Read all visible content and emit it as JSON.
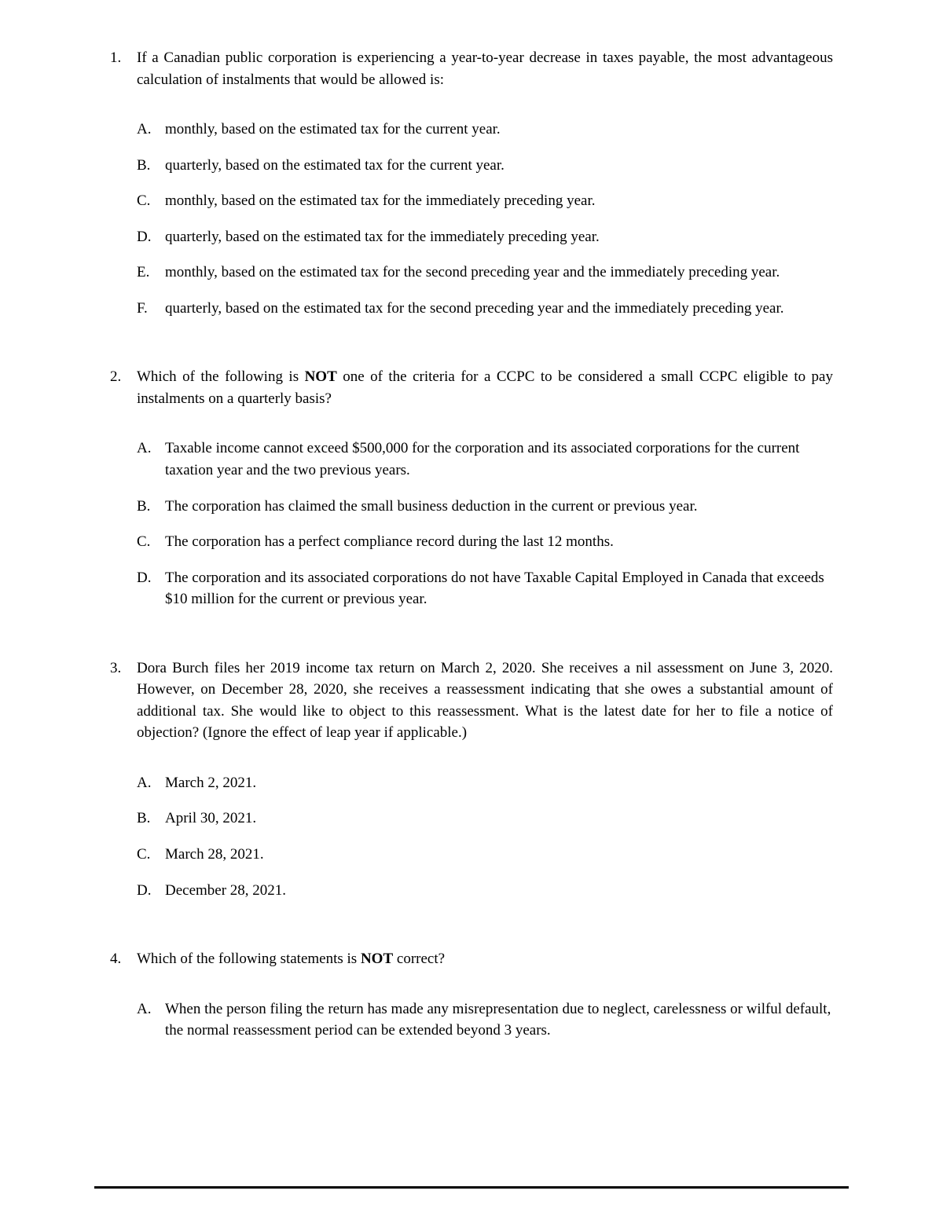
{
  "questions": [
    {
      "num": "1.",
      "text_parts": [
        {
          "t": "If a Canadian public corporation is experiencing a year-to-year decrease in taxes payable, the most advantageous calculation of instalments that would be allowed is:",
          "bold": false
        }
      ],
      "justify": true,
      "options": [
        {
          "label": "A.",
          "text": "monthly, based on the estimated tax for the current year.",
          "justify": false
        },
        {
          "label": "B.",
          "text": "quarterly, based on the estimated tax for the current year.",
          "justify": false
        },
        {
          "label": "C.",
          "text": "monthly, based on the estimated tax for the immediately preceding year.",
          "justify": false
        },
        {
          "label": "D.",
          "text": "quarterly, based on the estimated tax for the immediately preceding year.",
          "justify": false
        },
        {
          "label": "E.",
          "text": "monthly, based on the estimated tax for the second preceding year and the immediately preceding year.",
          "justify": false
        },
        {
          "label": "F.",
          "text": "quarterly, based on the estimated tax for the second preceding year and the immediately preceding year.",
          "justify": true
        }
      ]
    },
    {
      "num": "2.",
      "text_parts": [
        {
          "t": "Which of the following is ",
          "bold": false
        },
        {
          "t": "NOT",
          "bold": true
        },
        {
          "t": " one of the criteria for a CCPC to be considered a small CCPC eligible to pay instalments on a quarterly basis?",
          "bold": false
        }
      ],
      "justify": true,
      "options": [
        {
          "label": "A.",
          "text": "Taxable income cannot exceed $500,000 for the corporation and its associated corporations for the current taxation year and the two previous years.",
          "justify": false
        },
        {
          "label": "B.",
          "text": "The corporation has claimed the small business deduction in the current or previous year.",
          "justify": false
        },
        {
          "label": "C.",
          "text": "The corporation has a perfect compliance record during the last 12 months.",
          "justify": false
        },
        {
          "label": "D.",
          "text": "The corporation and its associated corporations do not have Taxable Capital Employed in Canada that exceeds $10 million for the current or previous year.",
          "justify": false
        }
      ]
    },
    {
      "num": "3.",
      "text_parts": [
        {
          "t": "Dora Burch files her 2019 income tax return on March 2, 2020. She receives a nil assessment on June 3, 2020.  However, on December 28, 2020, she receives a reassessment indicating that she owes a substantial amount of additional tax. She would like to object to this reassessment. What is the latest date for her to file a notice of objection? (Ignore the effect of leap year if applicable.)",
          "bold": false
        }
      ],
      "justify": true,
      "options": [
        {
          "label": "A.",
          "text": "March 2, 2021.",
          "justify": false
        },
        {
          "label": "B.",
          "text": "April 30, 2021.",
          "justify": false
        },
        {
          "label": "C.",
          "text": "March 28, 2021.",
          "justify": false
        },
        {
          "label": "D.",
          "text": "December 28, 2021.",
          "justify": false
        }
      ]
    },
    {
      "num": "4.",
      "text_parts": [
        {
          "t": "Which of the following statements is ",
          "bold": false
        },
        {
          "t": "NOT",
          "bold": true
        },
        {
          "t": " correct?",
          "bold": false
        }
      ],
      "justify": false,
      "options": [
        {
          "label": "A.",
          "text": "When the person filing the return has made any misrepresentation due to neglect, carelessness or wilful default, the normal reassessment period can be extended beyond 3 years.",
          "justify": false
        }
      ]
    }
  ]
}
